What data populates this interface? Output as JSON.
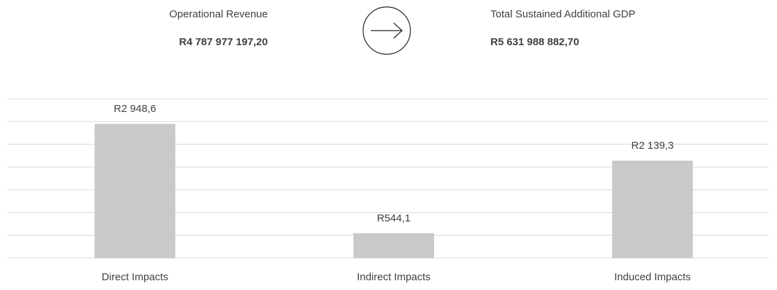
{
  "header": {
    "left": {
      "label": "Operational Revenue",
      "value": "R4 787 977 197,20"
    },
    "right": {
      "label": "Total Sustained Additional GDP",
      "value": "R5 631 988 882,70"
    }
  },
  "chart_data": {
    "type": "bar",
    "categories": [
      "Direct Impacts",
      "Indirect Impacts",
      "Induced Impacts"
    ],
    "values": [
      2948.6,
      544.1,
      2139.3
    ],
    "value_labels": [
      "R2 948,6",
      "R544,1",
      "R2 139,3"
    ],
    "color": "#c9c9c9",
    "ylim": [
      0,
      3500
    ],
    "yticks": [
      0,
      500,
      1000,
      1500,
      2000,
      2500,
      3000,
      3500
    ],
    "grid": true
  }
}
